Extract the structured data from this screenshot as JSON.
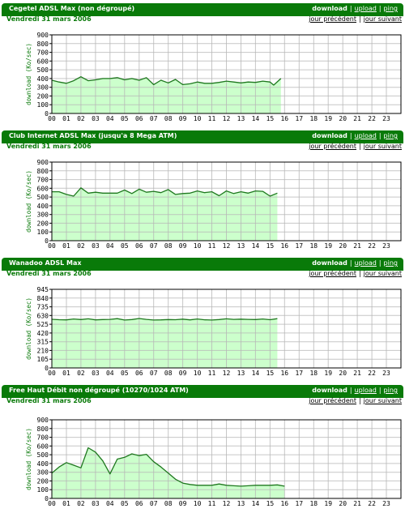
{
  "colors": {
    "accent": "#097a09",
    "line": "#1e781e",
    "fill": "#ccffcc",
    "grid": "#b8b8b8"
  },
  "panels": [
    {
      "title": "Cegetel ADSL Max (non dégroupé)",
      "date": "Vendredi 31 mars 2006",
      "links": {
        "download": "download",
        "upload": "upload",
        "ping": "ping"
      },
      "nav": {
        "prev": "jour précédent",
        "next": "jour suivant"
      },
      "chart_data": {
        "type": "area",
        "ylabel": "download (Ko/sec)",
        "yticks": [
          "0",
          "100",
          "200",
          "300",
          "400",
          "500",
          "600",
          "700",
          "800",
          "900"
        ],
        "ylim": [
          0,
          900
        ],
        "xticks": [
          "00",
          "01",
          "02",
          "03",
          "04",
          "05",
          "06",
          "07",
          "08",
          "09",
          "10",
          "11",
          "12",
          "13",
          "14",
          "15",
          "16",
          "17",
          "18",
          "19",
          "20",
          "21",
          "22",
          "23"
        ],
        "xlim": [
          0,
          24
        ],
        "grid": true,
        "series": [
          {
            "x": [
              0,
              0.5,
              1,
              1.5,
              2,
              2.5,
              3,
              3.5,
              4,
              4.5,
              5,
              5.5,
              6,
              6.5,
              7,
              7.5,
              8,
              8.5,
              9,
              9.5,
              10,
              10.5,
              11,
              11.5,
              12,
              12.5,
              13,
              13.5,
              14,
              14.5,
              15,
              15.25,
              15.75
            ],
            "y": [
              380,
              360,
              345,
              375,
              420,
              375,
              385,
              400,
              400,
              410,
              385,
              400,
              380,
              410,
              330,
              380,
              350,
              390,
              330,
              340,
              360,
              345,
              345,
              355,
              370,
              360,
              350,
              360,
              355,
              370,
              360,
              325,
              400
            ]
          }
        ]
      }
    },
    {
      "title": "Club Internet ADSL Max (jusqu'a 8 Mega ATM)",
      "date": "Vendredi 31 mars 2006",
      "links": {
        "download": "download",
        "upload": "upload",
        "ping": "ping"
      },
      "nav": {
        "prev": "jour précédent",
        "next": "jour suivant"
      },
      "chart_data": {
        "type": "area",
        "ylabel": "download (Ko/sec)",
        "yticks": [
          "0",
          "100",
          "200",
          "300",
          "400",
          "500",
          "600",
          "700",
          "800",
          "900"
        ],
        "ylim": [
          0,
          900
        ],
        "xticks": [
          "00",
          "01",
          "02",
          "03",
          "04",
          "05",
          "06",
          "07",
          "08",
          "09",
          "10",
          "11",
          "12",
          "13",
          "14",
          "15",
          "16",
          "17",
          "18",
          "19",
          "20",
          "21",
          "22",
          "23"
        ],
        "xlim": [
          0,
          24
        ],
        "grid": true,
        "series": [
          {
            "x": [
              0,
              0.5,
              1,
              1.5,
              2,
              2.5,
              3,
              3.5,
              4,
              4.5,
              5,
              5.5,
              6,
              6.5,
              7,
              7.5,
              8,
              8.5,
              9,
              9.5,
              10,
              10.5,
              11,
              11.5,
              12,
              12.5,
              13,
              13.5,
              14,
              14.5,
              15,
              15.5
            ],
            "y": [
              560,
              560,
              530,
              510,
              605,
              545,
              555,
              545,
              545,
              545,
              580,
              540,
              590,
              555,
              565,
              550,
              585,
              530,
              540,
              545,
              570,
              550,
              560,
              515,
              570,
              540,
              560,
              545,
              570,
              565,
              510,
              545
            ]
          }
        ]
      }
    },
    {
      "title": "Wanadoo ADSL Max",
      "date": "Vendredi 31 mars 2006",
      "links": {
        "download": "download",
        "upload": "upload",
        "ping": "ping"
      },
      "nav": {
        "prev": "jour précédent",
        "next": "jour suivant"
      },
      "chart_data": {
        "type": "area",
        "ylabel": "download (Ko/sec)",
        "yticks": [
          "0",
          "105",
          "210",
          "315",
          "420",
          "525",
          "630",
          "735",
          "840",
          "945"
        ],
        "ylim": [
          0,
          945
        ],
        "xticks": [
          "00",
          "01",
          "02",
          "03",
          "04",
          "05",
          "06",
          "07",
          "08",
          "09",
          "10",
          "11",
          "12",
          "13",
          "14",
          "15",
          "16",
          "17",
          "18",
          "19",
          "20",
          "21",
          "22",
          "23"
        ],
        "xlim": [
          0,
          24
        ],
        "grid": true,
        "series": [
          {
            "x": [
              0,
              0.5,
              1,
              1.5,
              2,
              2.5,
              3,
              3.5,
              4,
              4.5,
              5,
              5.5,
              6,
              6.5,
              7,
              7.5,
              8,
              8.5,
              9,
              9.5,
              10,
              10.5,
              11,
              11.5,
              12,
              12.5,
              13,
              13.5,
              14,
              14.5,
              15,
              15.5
            ],
            "y": [
              585,
              580,
              578,
              588,
              582,
              590,
              578,
              582,
              584,
              592,
              576,
              582,
              594,
              584,
              576,
              578,
              582,
              580,
              586,
              578,
              588,
              579,
              576,
              582,
              590,
              584,
              586,
              584,
              582,
              588,
              580,
              592
            ]
          }
        ]
      }
    },
    {
      "title": "Free Haut Débit non dégroupé (10270/1024 ATM)",
      "date": "Vendredi 31 mars 2006",
      "links": {
        "download": "download",
        "upload": "upload",
        "ping": "ping"
      },
      "nav": {
        "prev": "jour précédent",
        "next": "jour suivant"
      },
      "chart_data": {
        "type": "area",
        "ylabel": "download (Ko/sec)",
        "yticks": [
          "0",
          "100",
          "200",
          "300",
          "400",
          "500",
          "600",
          "700",
          "800",
          "900"
        ],
        "ylim": [
          0,
          900
        ],
        "xticks": [
          "00",
          "01",
          "02",
          "03",
          "04",
          "05",
          "06",
          "07",
          "08",
          "09",
          "10",
          "11",
          "12",
          "13",
          "14",
          "15",
          "16",
          "17",
          "18",
          "19",
          "20",
          "21",
          "22",
          "23"
        ],
        "xlim": [
          0,
          24
        ],
        "grid": true,
        "series": [
          {
            "x": [
              0,
              0.5,
              1,
              1.5,
              2,
              2.5,
              3,
              3.5,
              4,
              4.5,
              5,
              5.5,
              6,
              6.5,
              7,
              7.5,
              8,
              8.5,
              9,
              9.5,
              10,
              10.5,
              11,
              11.5,
              12,
              12.5,
              13,
              13.5,
              14,
              14.5,
              15,
              15.5,
              16
            ],
            "y": [
              290,
              360,
              410,
              380,
              350,
              580,
              530,
              430,
              280,
              450,
              470,
              510,
              490,
              505,
              420,
              360,
              290,
              220,
              175,
              160,
              150,
              150,
              150,
              165,
              150,
              145,
              140,
              145,
              150,
              150,
              150,
              155,
              140
            ]
          }
        ]
      }
    }
  ]
}
